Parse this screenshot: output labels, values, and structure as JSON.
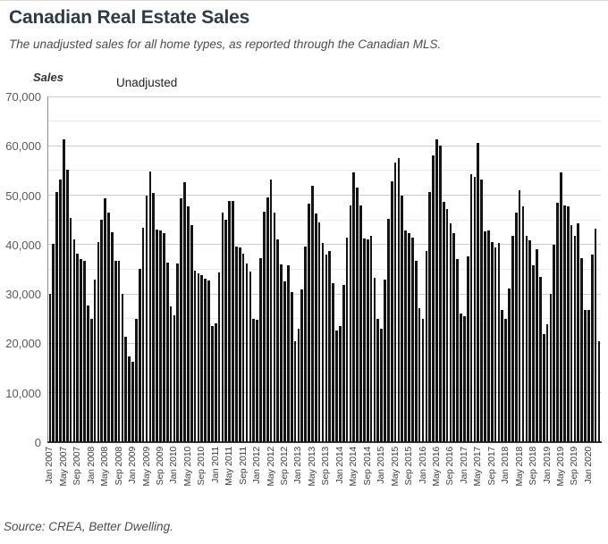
{
  "header": {
    "title": "Canadian Real Estate Sales",
    "subtitle": "The unadjusted sales for all home types, as reported through the Canadian MLS."
  },
  "source_note": "Source: CREA, Better Dwelling.",
  "chart_data": {
    "type": "bar",
    "title": "Canadian Real Estate Sales",
    "xlabel": "",
    "ylabel": "Sales",
    "ylim": [
      0,
      70000
    ],
    "y_major_step": 10000,
    "y_minor_step": 5000,
    "grid": true,
    "legend_position": "top-left",
    "bar_color": "#141414",
    "y_tick_labels": [
      "0",
      "10,000",
      "20,000",
      "30,000",
      "40,000",
      "50,000",
      "60,000",
      "70,000"
    ],
    "x_tick_every": 4,
    "x_tick_labels": [
      "Jan 2007",
      "May 2007",
      "Sep 2007",
      "Jan 2008",
      "May 2008",
      "Sep 2008",
      "Jan 2009",
      "May 2009",
      "Sep 2009",
      "Jan 2010",
      "May 2010",
      "Sep 2010",
      "Jan 2011",
      "May 2011",
      "Sep 2011",
      "Jan 2012",
      "May 2012",
      "Sep 2012",
      "Jan 2013",
      "May 2013",
      "Sep 2013",
      "Jan 2014",
      "May 2014",
      "Sep 2014",
      "Jan 2015",
      "May 2015",
      "Sep 2015",
      "Jan 2016",
      "May 2016",
      "Sep 2016",
      "Jan 2017",
      "May 2017",
      "Sep 2017",
      "Jan 2018",
      "May 2018",
      "Sep 2018",
      "Jan 2019",
      "May 2019",
      "Sep 2019",
      "Jan 2020"
    ],
    "series": [
      {
        "name": "Unadjusted",
        "color": "#000000",
        "months_order": [
          "Jan",
          "Feb",
          "Mar",
          "Apr",
          "May",
          "Jun",
          "Jul",
          "Aug",
          "Sep",
          "Oct",
          "Nov",
          "Dec"
        ],
        "years": [
          {
            "year": 2007,
            "values": [
              30100,
              40200,
              50600,
              53200,
              61300,
              55100,
              45400,
              41000,
              38200,
              37000,
              36700,
              27700
            ]
          },
          {
            "year": 2008,
            "values": [
              24900,
              32900,
              40600,
              45000,
              49300,
              46400,
              42500,
              36800,
              36800,
              30000,
              21400,
              17300
            ]
          },
          {
            "year": 2009,
            "values": [
              16200,
              25000,
              35100,
              43500,
              50000,
              54800,
              50500,
              43100,
              42900,
              42300,
              36300,
              27500
            ]
          },
          {
            "year": 2010,
            "values": [
              25600,
              36200,
              49400,
              52600,
              47800,
              44000,
              34800,
              34200,
              33800,
              33100,
              32700,
              23600
            ]
          },
          {
            "year": 2011,
            "values": [
              24000,
              34400,
              46400,
              45000,
              48900,
              48900,
              39700,
              39500,
              38100,
              36200,
              34500,
              25000
            ]
          },
          {
            "year": 2012,
            "values": [
              24700,
              37200,
              46700,
              49600,
              53100,
              46500,
              41000,
              36000,
              32500,
              35900,
              30300,
              20400
            ]
          },
          {
            "year": 2013,
            "values": [
              23000,
              31000,
              39700,
              48300,
              51900,
              46300,
              44500,
              40300,
              38000,
              38700,
              32200,
              22700
            ]
          },
          {
            "year": 2014,
            "values": [
              23500,
              31900,
              41500,
              48000,
              54600,
              51600,
              48000,
              41300,
              41000,
              41800,
              33300,
              24900
            ]
          },
          {
            "year": 2015,
            "values": [
              23000,
              33000,
              45200,
              52800,
              56700,
              57600,
              50000,
              42900,
              42400,
              41500,
              36700,
              27100
            ]
          },
          {
            "year": 2016,
            "values": [
              25000,
              38700,
              50600,
              58100,
              61400,
              60100,
              48700,
              47200,
              44300,
              42400,
              37100,
              26100
            ]
          },
          {
            "year": 2017,
            "values": [
              25500,
              37700,
              54300,
              53800,
              60600,
              53200,
              42600,
              42800,
              40600,
              39500,
              40300,
              26700
            ]
          },
          {
            "year": 2018,
            "values": [
              24900,
              31200,
              41700,
              46500,
              51000,
              47800,
              41700,
              40900,
              35900,
              39100,
              33400,
              21900
            ]
          },
          {
            "year": 2019,
            "values": [
              23900,
              30000,
              40000,
              48500,
              54600,
              48000,
              47700,
              43900,
              41800,
              44300,
              37300,
              26700
            ]
          },
          {
            "year": 2020,
            "values": [
              26800,
              37900,
              43300,
              20500
            ]
          }
        ]
      }
    ]
  }
}
